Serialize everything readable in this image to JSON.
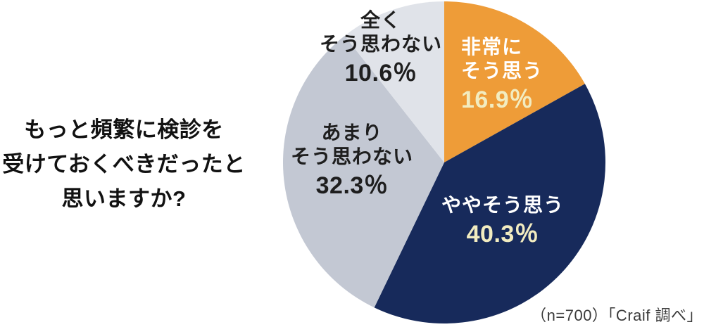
{
  "question": {
    "lines": [
      "もっと頻繁に検診を",
      "受けておくべきだったと",
      "思いますか?"
    ]
  },
  "chart_data": {
    "type": "pie",
    "title": "もっと頻繁に検診を受けておくべきだったと思いますか?",
    "unit": "%",
    "start_angle_deg": 0,
    "direction": "clockwise",
    "sample_note": "（n=700）「Craif 調べ」",
    "slices": [
      {
        "label": "非常にそう思う",
        "label_lines": [
          "非常に",
          "そう思う"
        ],
        "value": 16.9,
        "pct_label": "16.9％",
        "color": "#EE9C38",
        "label_color": "#FFFFFF",
        "pct_color": "#F2ECC0"
      },
      {
        "label": "ややそう思う",
        "label_lines": [
          "ややそう思う"
        ],
        "value": 40.3,
        "pct_label": "40.3％",
        "color": "#172A5B",
        "label_color": "#FFFFFF",
        "pct_color": "#F2ECC0"
      },
      {
        "label": "あまりそう思わない",
        "label_lines": [
          "あまり",
          "そう思わない"
        ],
        "value": 32.3,
        "pct_label": "32.3％",
        "color": "#C3C8D3",
        "label_color": "#1E1E1E",
        "pct_color": "#1E1E1E"
      },
      {
        "label": "全くそう思わない",
        "label_lines": [
          "全く",
          "そう思わない"
        ],
        "value": 10.6,
        "pct_label": "10.6％",
        "color": "#E0E3E9",
        "label_color": "#1E1E1E",
        "pct_color": "#1E1E1E"
      }
    ]
  }
}
